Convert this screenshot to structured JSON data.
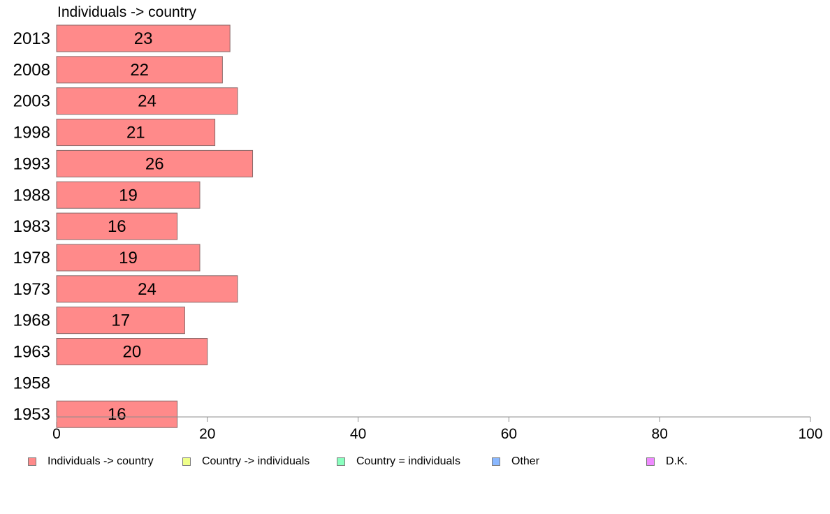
{
  "chart_data": {
    "type": "bar",
    "orientation": "horizontal",
    "title": "Individuals -> country",
    "categories": [
      "2013",
      "2008",
      "2003",
      "1998",
      "1993",
      "1988",
      "1983",
      "1978",
      "1973",
      "1968",
      "1963",
      "1958",
      "1953"
    ],
    "series": [
      {
        "name": "Individuals -> country",
        "color": "#ff8a8a",
        "values": [
          23,
          22,
          24,
          21,
          26,
          19,
          16,
          19,
          24,
          17,
          20,
          null,
          16
        ],
        "labels": [
          "23",
          "22",
          "24",
          "21",
          "26",
          "19",
          "16",
          "19",
          "24",
          "17",
          "20",
          "",
          "16"
        ]
      }
    ],
    "xlim": [
      0,
      100
    ],
    "xticks": [
      0,
      20,
      40,
      60,
      80,
      100
    ],
    "xtick_labels": [
      "0",
      "20",
      "40",
      "60",
      "80",
      "100"
    ],
    "grid": false,
    "legend_position": "bottom"
  },
  "legend": [
    {
      "label": "Individuals -> country",
      "color": "#ff8a8a"
    },
    {
      "label": "Country -> individuals",
      "color": "#efff8a"
    },
    {
      "label": "Country = individuals",
      "color": "#8affbf"
    },
    {
      "label": "Other",
      "color": "#8ab8ff"
    },
    {
      "label": "D.K.",
      "color": "#ef8aff"
    }
  ]
}
